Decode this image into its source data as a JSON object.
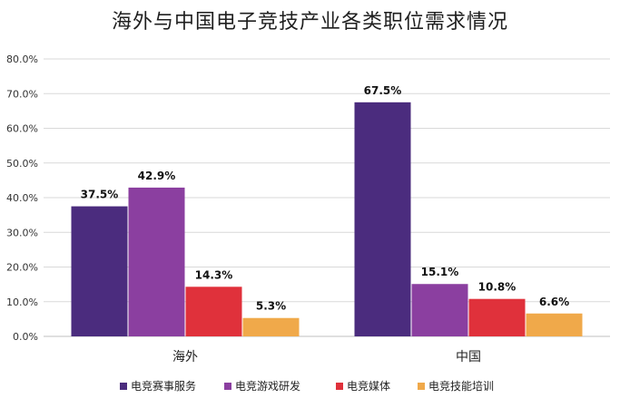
{
  "chart_data": {
    "type": "bar",
    "title": "海外与中国电子竞技产业各类职位需求情况",
    "categories": [
      "海外",
      "中国"
    ],
    "series": [
      {
        "name": "电竞赛事服务",
        "values": [
          37.5,
          67.5
        ],
        "color": "#4b2c7e"
      },
      {
        "name": "电竞游戏研发",
        "values": [
          42.9,
          15.1
        ],
        "color": "#8b3fa0"
      },
      {
        "name": "电竞媒体",
        "values": [
          14.3,
          10.8
        ],
        "color": "#e0313b"
      },
      {
        "name": "电竞技能培训",
        "values": [
          5.3,
          6.6
        ],
        "color": "#f0a94a"
      }
    ],
    "data_labels": [
      [
        "37.5%",
        "67.5%"
      ],
      [
        "42.9%",
        "15.1%"
      ],
      [
        "14.3%",
        "10.8%"
      ],
      [
        "5.3%",
        "6.6%"
      ]
    ],
    "ylim": [
      0,
      80
    ],
    "yticks": [
      "0.0%",
      "10.0%",
      "20.0%",
      "30.0%",
      "40.0%",
      "50.0%",
      "60.0%",
      "70.0%",
      "80.0%"
    ],
    "grid": true,
    "legend_position": "bottom",
    "xlabel": "",
    "ylabel": ""
  }
}
